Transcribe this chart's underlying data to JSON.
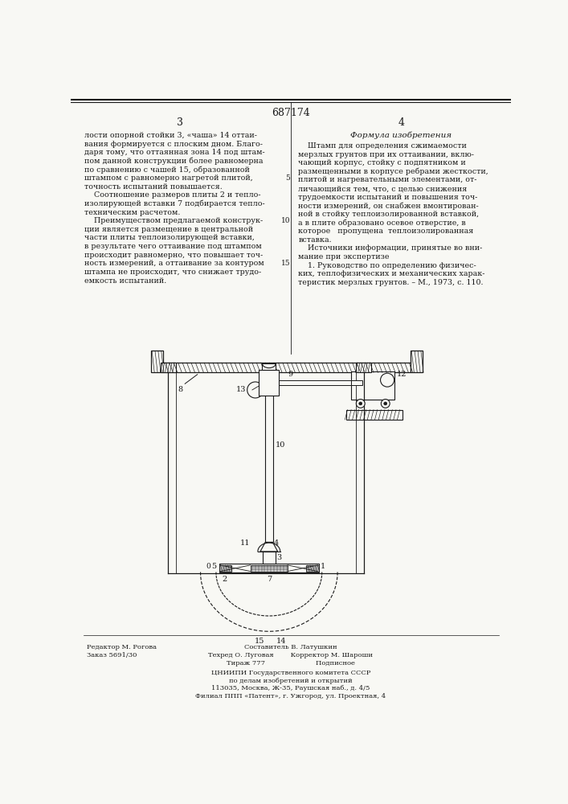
{
  "patent_number": "687174",
  "page_left": "3",
  "page_right": "4",
  "bg_color": "#f8f8f4",
  "text_color": "#1a1a1a",
  "left_column_text": [
    "лости опорной стойки 3, «чаша» 14 оттаи-",
    "вания формируется с плоским дном. Благо-",
    "даря тому, что оттаянная зона 14 под штам-",
    "пом данной конструкции более равномерна",
    "по сравнению с чашей 15, образованной",
    "штампом с равномерно нагретой плитой,",
    "точность испытаний повышается.",
    "    Соотношение размеров плиты 2 и тепло-",
    "изолирующей вставки 7 подбирается тепло-",
    "техническим расчетом.",
    "    Преимуществом предлагаемой конструк-",
    "ции является размещение в центральной",
    "части плиты теплоизолирующей вставки,",
    "в результате чего оттаивание под штампом",
    "происходит равномерно, что повышает точ-",
    "ность измерений, а оттаивание за контуром",
    "штампа не происходит, что снижает трудо-",
    "емкость испытаний."
  ],
  "right_column_title": "Формула изобретения",
  "right_column_text": [
    "    Штамп для определения сжимаемости",
    "мерзлых грунтов при их оттаивании, вклю-",
    "чающий корпус, стойку с подпятником и",
    "размещенными в корпусе ребрами жесткости,",
    "плитой и нагревательными элементами, от-",
    "личающийся тем, что, с целью снижения",
    "трудоемкости испытаний и повышения точ-",
    "ности измерений, он снабжен вмонтирован-",
    "ной в стойку теплоизолированной вставкой,",
    "а в плите образовано осевое отверстие, в",
    "которое   пропущена  теплоизолированная",
    "вставка.",
    "    Источники информации, принятые во вни-",
    "мание при экспертизе",
    "    1. Руководство по определению физичес-",
    "ких, теплофизических и механических харак-",
    "теристик мерзлых грунтов. – М., 1973, с. 110."
  ],
  "bottom_text_left": [
    "Редактор М. Рогова",
    "Заказ 5691/30"
  ],
  "bottom_text_center_top": "Составитель В. Латушкин",
  "bottom_text_center_mid": "Техред О. Луговая        Корректор М. Шароши",
  "bottom_text_center_bot": "Тираж 777                        Подписное",
  "bottom_text_org": [
    "ЦНИИПИ Государственного комитета СССР",
    "по делам изобретений и открытий",
    "113035, Москва, Ж-35, Раушская наб., д. 4/5",
    "Филиал ППП «Патент», г. Ужгород, ул. Проектная, 4"
  ]
}
